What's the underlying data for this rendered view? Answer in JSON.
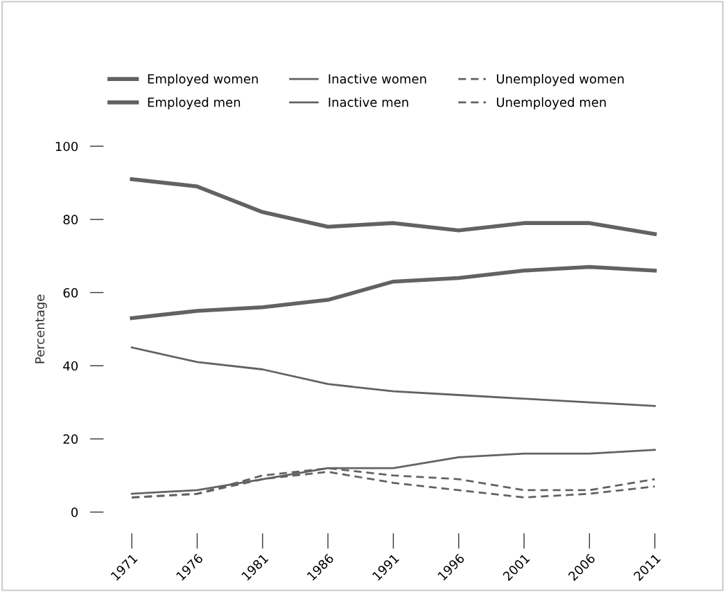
{
  "chart_data": {
    "type": "line",
    "ylabel": "Percentage",
    "categories": [
      "1971",
      "1976",
      "1981",
      "1986",
      "1991",
      "1996",
      "2001",
      "2006",
      "2011"
    ],
    "series": [
      {
        "name": "Employed women",
        "color": "#626262",
        "line_style": "solid",
        "values": [
          53,
          55,
          56,
          58,
          63,
          64,
          66,
          67,
          66
        ]
      },
      {
        "name": "Employed men",
        "color": "#626262",
        "line_style": "solid",
        "values": [
          91,
          89,
          82,
          78,
          79,
          77,
          79,
          79,
          76
        ]
      },
      {
        "name": "Inactive women",
        "color": "#626262",
        "line_style": "solid",
        "values": [
          45,
          41,
          39,
          35,
          33,
          32,
          31,
          30,
          29
        ]
      },
      {
        "name": "Inactive men",
        "color": "#626262",
        "line_style": "solid",
        "values": [
          5,
          6,
          9,
          12,
          12,
          15,
          16,
          16,
          17
        ]
      },
      {
        "name": "Unemployed women",
        "color": "#626262",
        "line_style": "dashed",
        "values": [
          4,
          5,
          9,
          11,
          8,
          6,
          4,
          5,
          7
        ]
      },
      {
        "name": "Unemployed men",
        "color": "#626262",
        "line_style": "dashed",
        "values": [
          4,
          5,
          10,
          12,
          10,
          9,
          6,
          6,
          9
        ]
      }
    ],
    "ylim": [
      0,
      100
    ],
    "yticks": [
      0,
      20,
      40,
      60,
      80,
      100
    ],
    "grid": false,
    "legend": "top",
    "marker": "none"
  }
}
